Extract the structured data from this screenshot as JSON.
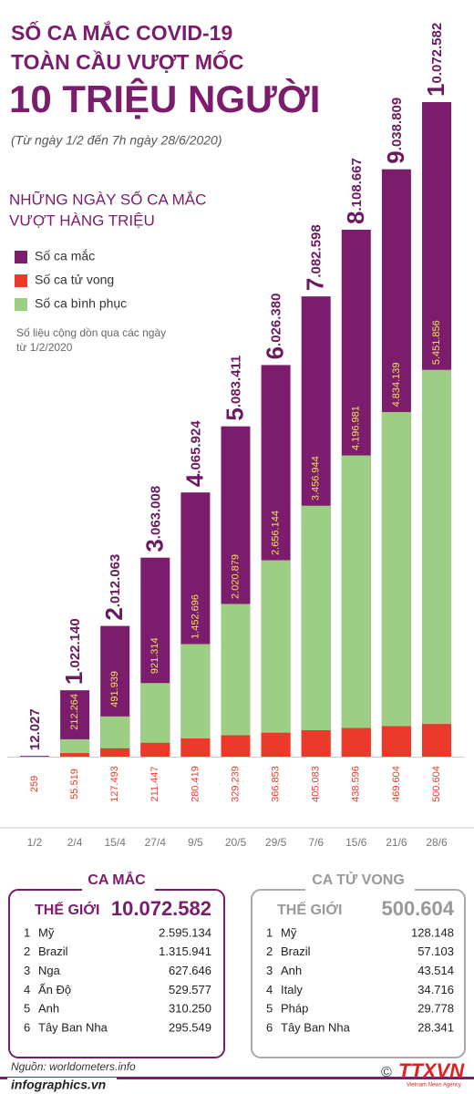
{
  "header": {
    "title_lines": [
      "SỐ CA MẮC COVID-19",
      "TOÀN CẦU VƯỢT MỐC",
      "10 TRIỆU NGƯỜI"
    ],
    "subtitle": "(Từ ngày 1/2 đến 7h ngày 28/6/2020)"
  },
  "chart_data": {
    "type": "bar",
    "stacked": true,
    "title": [
      "NHỮNG NGÀY SỐ CA MẮC",
      "VƯỢT HÀNG TRIỆU"
    ],
    "annotation": [
      "Số liệu cộng dồn qua các ngày",
      "từ 1/2/2020"
    ],
    "categories": [
      "1/2",
      "2/4",
      "15/4",
      "27/4",
      "9/5",
      "20/5",
      "29/5",
      "7/6",
      "15/6",
      "21/6",
      "28/6"
    ],
    "series": [
      {
        "name": "Số ca mắc",
        "color": "#7b1c6c",
        "values": [
          12027,
          1022140,
          2012063,
          3063008,
          4065924,
          5083411,
          6026380,
          7082598,
          8108667,
          9038809,
          10072582
        ],
        "value_labels": [
          "12.027",
          "1.022.140",
          "2.012.063",
          "3.063.008",
          "4.065.924",
          "5.083.411",
          "6.026.380",
          "7.082.598",
          "8.108.667",
          "9.038.809",
          "10.072.582"
        ]
      },
      {
        "name": "Số ca tử vong",
        "color": "#ec3a2a",
        "values": [
          259,
          55519,
          127493,
          211447,
          280419,
          329239,
          366853,
          405083,
          438596,
          469604,
          500604
        ],
        "value_labels": [
          "259",
          "55.519",
          "127.493",
          "211.447",
          "280.419",
          "329.239",
          "366.853",
          "405.083",
          "438.596",
          "469.604",
          "500.604"
        ]
      },
      {
        "name": "Số ca bình phục",
        "color": "#9ccf84",
        "values": [
          null,
          212264,
          491939,
          921314,
          1452696,
          2020879,
          2656144,
          3456944,
          4196981,
          4834139,
          5451856
        ],
        "value_labels": [
          null,
          "212.264",
          "491.939",
          "921.314",
          "1.452.696",
          "2.020.879",
          "2.656.144",
          "3.456.944",
          "4.196.981",
          "4.834.139",
          "5.451.856"
        ]
      }
    ]
  },
  "tables": {
    "cases": {
      "title": "CA MẮC",
      "world_label": "THẾ GIỚI",
      "world_value": "10.072.582",
      "rows": [
        [
          "1",
          "Mỹ",
          "2.595.134"
        ],
        [
          "2",
          "Brazil",
          "1.315.941"
        ],
        [
          "3",
          "Nga",
          "627.646"
        ],
        [
          "4",
          "Ấn Độ",
          "529.577"
        ],
        [
          "5",
          "Anh",
          "310.250"
        ],
        [
          "6",
          "Tây Ban Nha",
          "295.549"
        ]
      ]
    },
    "deaths": {
      "title": "CA TỬ VONG",
      "world_label": "THẾ GIỚI",
      "world_value": "500.604",
      "rows": [
        [
          "1",
          "Mỹ",
          "128.148"
        ],
        [
          "2",
          "Brazil",
          "57.103"
        ],
        [
          "3",
          "Anh",
          "43.514"
        ],
        [
          "4",
          "Italy",
          "34.716"
        ],
        [
          "5",
          "Pháp",
          "29.778"
        ],
        [
          "6",
          "Tây Ban Nha",
          "28.341"
        ]
      ]
    }
  },
  "footer": {
    "source": "Nguồn: worldometers.info",
    "site": "infographics.vn",
    "agency": "TTXVN",
    "agency_sub": "Vietnam News Agency"
  }
}
